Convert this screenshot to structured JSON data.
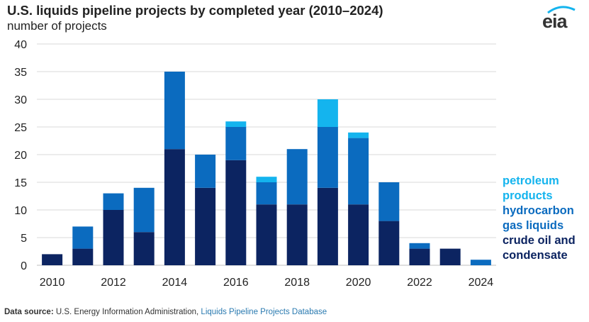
{
  "header": {
    "title": "U.S. liquids pipeline projects by completed year (2010–2024)",
    "subtitle": "number of projects",
    "logo_text": "eia"
  },
  "footer": {
    "source_label": "Data source:",
    "source_text": "U.S. Energy Information Administration,",
    "source_link": "Liquids Pipeline Projects Database"
  },
  "colors": {
    "crude": "#0c2461",
    "hgl": "#0b6bbf",
    "petroleum": "#14b4ee",
    "grid": "#d9d9d9"
  },
  "chart_data": {
    "type": "bar",
    "stacked": true,
    "title": "U.S. liquids pipeline projects by completed year (2010–2024)",
    "ylabel": "number of projects",
    "xlabel": "",
    "categories": [
      "2010",
      "2011",
      "2012",
      "2013",
      "2014",
      "2015",
      "2016",
      "2017",
      "2018",
      "2019",
      "2020",
      "2021",
      "2022",
      "2023",
      "2024"
    ],
    "x_tick_labels": [
      "2010",
      "2012",
      "2014",
      "2016",
      "2018",
      "2020",
      "2022",
      "2024"
    ],
    "y_ticks": [
      0,
      5,
      10,
      15,
      20,
      25,
      30,
      35,
      40
    ],
    "ylim": [
      0,
      40
    ],
    "grid": true,
    "legend_position": "right",
    "series": [
      {
        "name": "crude oil and condensate",
        "color": "#0c2461",
        "values": [
          2,
          3,
          10,
          6,
          21,
          14,
          19,
          11,
          11,
          14,
          11,
          8,
          3,
          3,
          0
        ]
      },
      {
        "name": "hydrocarbon gas liquids",
        "color": "#0b6bbf",
        "values": [
          0,
          4,
          3,
          8,
          14,
          6,
          6,
          4,
          10,
          11,
          12,
          7,
          1,
          0,
          1
        ]
      },
      {
        "name": "petroleum products",
        "color": "#14b4ee",
        "values": [
          0,
          0,
          0,
          0,
          0,
          0,
          1,
          1,
          0,
          5,
          1,
          0,
          0,
          0,
          0
        ]
      }
    ],
    "legend_order": [
      "petroleum products",
      "hydrocarbon gas liquids",
      "crude oil and condensate"
    ]
  }
}
